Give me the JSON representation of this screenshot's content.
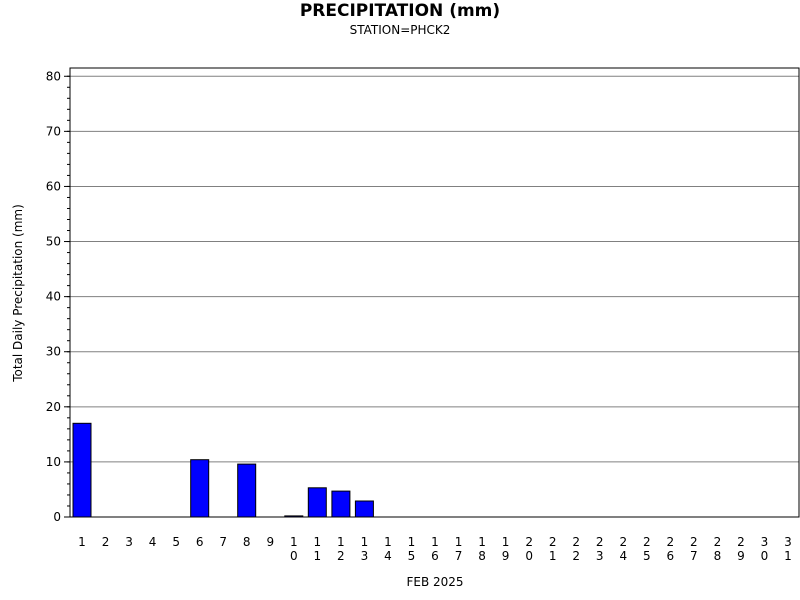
{
  "chart_data": {
    "type": "bar",
    "title": "PRECIPITATION (mm)",
    "subtitle": "STATION=PHCK2",
    "xlabel": "FEB 2025",
    "ylabel": "Total Daily Precipitation (mm)",
    "ylim": [
      0,
      80
    ],
    "ytick_step": 10,
    "grid": true,
    "bar_color": "#0000ff",
    "bar_edge_color": "#000000",
    "categories": [
      "1",
      "2",
      "3",
      "4",
      "5",
      "6",
      "7",
      "8",
      "9",
      "10",
      "11",
      "12",
      "13",
      "14",
      "15",
      "16",
      "17",
      "18",
      "19",
      "20",
      "21",
      "22",
      "23",
      "24",
      "25",
      "26",
      "27",
      "28",
      "29",
      "30",
      "31"
    ],
    "values": [
      17.0,
      0,
      0,
      0,
      0,
      10.4,
      0,
      9.6,
      0,
      0.2,
      5.3,
      4.7,
      2.9,
      0,
      0,
      0,
      0,
      0,
      0,
      0,
      0,
      0,
      0,
      0,
      0,
      0,
      0,
      0,
      0,
      0,
      0
    ]
  }
}
